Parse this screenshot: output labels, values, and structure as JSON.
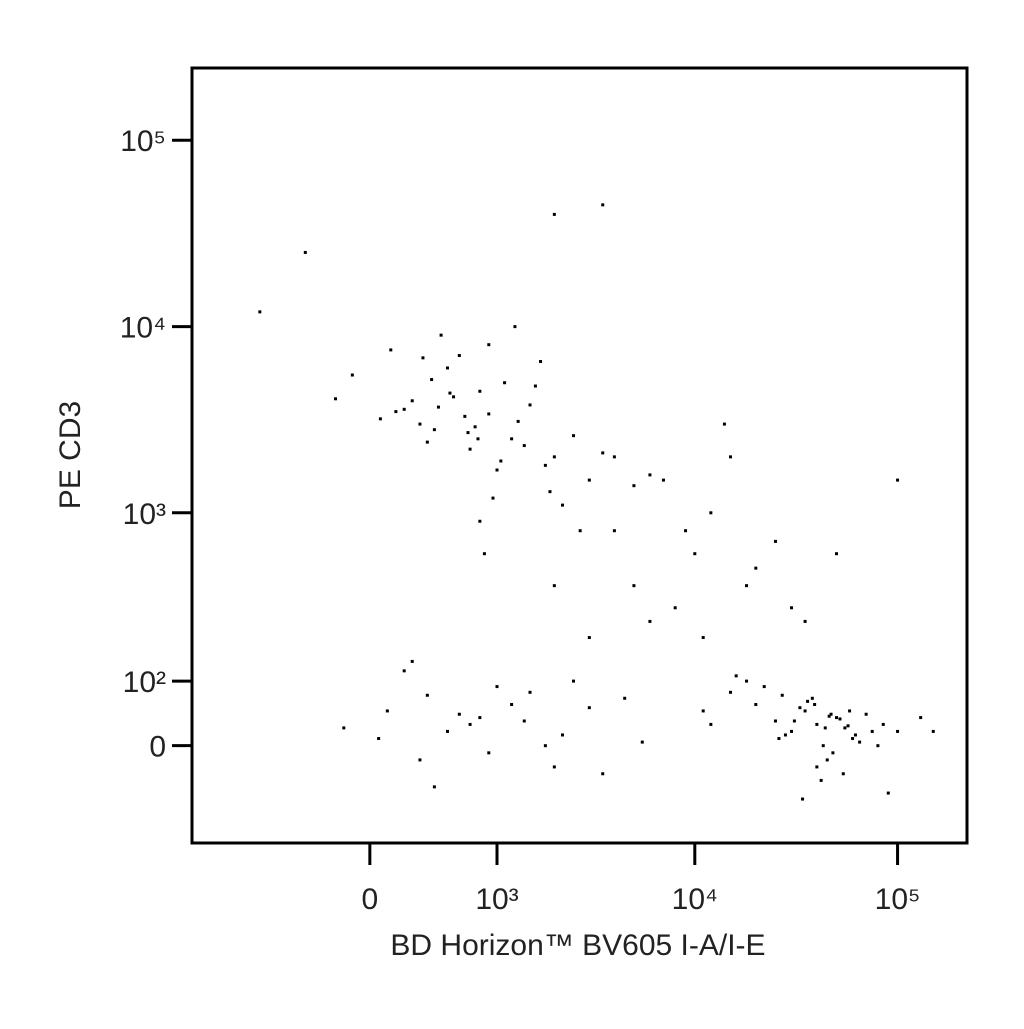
{
  "chart_data": {
    "type": "scatter",
    "xlabel": "BD Horizon™ BV605 I-A/I-E",
    "ylabel": "PE CD3",
    "xscale": "biexponential",
    "yscale": "biexponential",
    "xlim": [
      -1850,
      220000
    ],
    "ylim": [
      -171,
      244000
    ],
    "xticks": [
      0,
      {
        "value": 1000,
        "label": "10³"
      },
      {
        "value": 10000,
        "label": "10⁴"
      },
      {
        "value": 100000,
        "label": "10⁵"
      }
    ],
    "yticks": [
      0,
      {
        "value": 100,
        "label": "10²"
      },
      {
        "value": 1000,
        "label": "10³"
      },
      {
        "value": 10000,
        "label": "10⁴"
      },
      {
        "value": 100000,
        "label": "10⁵"
      }
    ],
    "color": "#000000",
    "x": [
      300,
      800,
      1200,
      500,
      150,
      2000,
      900,
      400,
      650,
      1100,
      1800,
      250,
      700,
      3000,
      450,
      1500,
      950,
      -100,
      2500,
      600,
      350,
      1300,
      800,
      200,
      4000,
      1700,
      550,
      1000,
      750,
      2200,
      120,
      900,
      1400,
      380,
      5000,
      680,
      1600,
      2700,
      60,
      1050,
      850,
      430,
      3500,
      1250,
      520,
      1900,
      780,
      -200,
      320,
      6000,
      100,
      500,
      1500,
      300,
      800,
      2500,
      50,
      1200,
      3500,
      700,
      200,
      1800,
      4500,
      400,
      1000,
      2200,
      600,
      -150,
      3000,
      900,
      1400,
      250,
      5500,
      350,
      2000,
      40000,
      30000,
      50000,
      20000,
      60000,
      45000,
      35000,
      80000,
      25000,
      15000,
      55000,
      42000,
      70000,
      38000,
      28000,
      100000,
      48000,
      33000,
      18000,
      65000,
      52000,
      12000,
      90000,
      36000,
      44000,
      26000,
      58000,
      130000,
      40000,
      22000,
      75000,
      47000,
      31000,
      16000,
      62000,
      39000,
      54000,
      27000,
      85000,
      43000,
      11000,
      150000,
      34000,
      57000,
      46000,
      8000,
      12000,
      20000,
      5000,
      3000,
      15000,
      9000,
      30000,
      7000,
      25000,
      6000,
      50000,
      11000,
      18000,
      4000,
      100000,
      14000,
      2000,
      35000,
      10000,
      -800,
      3500,
      -400,
      2000
    ],
    "values": [
      3000,
      4500,
      2500,
      6000,
      3500,
      2000,
      8000,
      2800,
      3300,
      5000,
      1800,
      4000,
      2200,
      1500,
      9000,
      3800,
      1200,
      5500,
      2600,
      7000,
      2400,
      3100,
      900,
      3600,
      2000,
      6500,
      4200,
      1700,
      2900,
      1100,
      7500,
      3400,
      2300,
      5200,
      1400,
      2700,
      4800,
      800,
      3200,
      1900,
      600,
      3700,
      2100,
      10000,
      4400,
      1300,
      2500,
      4100,
      6800,
      1600,
      50,
      20,
      80,
      -20,
      40,
      100,
      10,
      60,
      -40,
      30,
      120,
      0,
      70,
      -60,
      90,
      15,
      45,
      25,
      55,
      -10,
      35,
      140,
      5,
      75,
      -30,
      30,
      20,
      40,
      60,
      10,
      -20,
      50,
      0,
      35,
      80,
      25,
      -50,
      45,
      70,
      15,
      20,
      -10,
      55,
      100,
      5,
      38,
      30,
      -70,
      65,
      25,
      10,
      50,
      40,
      -30,
      90,
      20,
      45,
      35,
      110,
      15,
      60,
      -40,
      75,
      30,
      0,
      50,
      20,
      -80,
      28,
      42,
      300,
      1000,
      500,
      400,
      200,
      2000,
      800,
      300,
      1500,
      700,
      250,
      600,
      200,
      400,
      800,
      1500,
      3000,
      400,
      250,
      600,
      12000,
      45000,
      25000,
      40000
    ]
  }
}
